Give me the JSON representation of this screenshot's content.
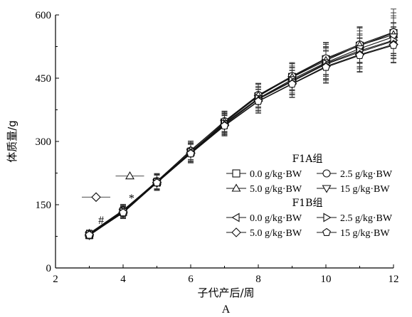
{
  "chart_data": {
    "type": "line",
    "xlabel": "子代产后/周",
    "ylabel": "体质量/g",
    "panel_label": "A",
    "xlim": [
      2,
      12
    ],
    "ylim": [
      0,
      600
    ],
    "x_ticks": [
      2,
      4,
      6,
      8,
      10,
      12
    ],
    "y_ticks": [
      0,
      150,
      300,
      450,
      600
    ],
    "x": [
      3,
      4,
      5,
      6,
      7,
      8,
      9,
      10,
      11,
      12
    ],
    "series": [
      {
        "name": "0.0 g/kg·BW",
        "group": "F1A组",
        "marker": "square",
        "values": [
          78,
          133,
          203,
          275,
          345,
          407,
          453,
          495,
          527,
          557
        ],
        "errors": [
          8,
          14,
          18,
          22,
          24,
          28,
          32,
          38,
          42,
          48
        ]
      },
      {
        "name": "2.5 g/kg·BW",
        "group": "F1A组",
        "marker": "circle",
        "values": [
          80,
          136,
          206,
          278,
          348,
          410,
          455,
          497,
          530,
          559
        ],
        "errors": [
          8,
          14,
          18,
          22,
          24,
          28,
          32,
          38,
          42,
          55
        ]
      },
      {
        "name": "5.0 g/kg·BW",
        "group": "F1A组",
        "marker": "triangle-up",
        "values": [
          82,
          137,
          205,
          279,
          347,
          409,
          452,
          492,
          528,
          553
        ],
        "errors": [
          8,
          14,
          18,
          22,
          24,
          28,
          32,
          38,
          42,
          45
        ]
      },
      {
        "name": "15 g/kg·BW",
        "group": "F1A组",
        "marker": "triangle-down",
        "values": [
          77,
          132,
          202,
          274,
          343,
          402,
          447,
          487,
          520,
          548
        ],
        "errors": [
          8,
          14,
          18,
          22,
          24,
          28,
          32,
          38,
          42,
          45
        ]
      },
      {
        "name": "0.0 g/kg·BW",
        "group": "F1B组",
        "marker": "triangle-left",
        "values": [
          79,
          133,
          203,
          274,
          340,
          400,
          442,
          483,
          512,
          538
        ],
        "errors": [
          8,
          14,
          18,
          22,
          24,
          28,
          32,
          38,
          40,
          42
        ]
      },
      {
        "name": "2.5 g/kg·BW",
        "group": "F1B组",
        "marker": "triangle-right",
        "values": [
          80,
          134,
          204,
          275,
          342,
          402,
          444,
          485,
          515,
          540
        ],
        "errors": [
          8,
          14,
          18,
          22,
          24,
          28,
          32,
          38,
          40,
          42
        ]
      },
      {
        "name": "5.0 g/kg·BW",
        "group": "F1B组",
        "marker": "diamond",
        "values": [
          78,
          131,
          202,
          272,
          338,
          396,
          437,
          478,
          506,
          530
        ],
        "errors": [
          8,
          14,
          18,
          22,
          24,
          28,
          32,
          38,
          40,
          42
        ]
      },
      {
        "name": "15 g/kg·BW",
        "group": "F1B组",
        "marker": "pentagon",
        "values": [
          78,
          131,
          202,
          271,
          337,
          395,
          436,
          476,
          504,
          528
        ],
        "errors": [
          8,
          14,
          18,
          22,
          24,
          28,
          32,
          38,
          40,
          42
        ]
      }
    ],
    "annotations": [
      {
        "text": "#",
        "x": 3.35,
        "y": 113
      },
      {
        "text": "*",
        "x": 4.25,
        "y": 165
      }
    ],
    "significance_markers": [
      {
        "marker": "triangle-up",
        "x": 4.2,
        "y": 218
      },
      {
        "marker": "diamond",
        "x": 3.2,
        "y": 168
      }
    ],
    "legend_position": "lower-right",
    "legend_groups": [
      {
        "title": "F1A组",
        "items": [
          "0.0 g/kg·BW",
          "2.5 g/kg·BW",
          "5.0 g/kg·BW",
          "15 g/kg·BW"
        ]
      },
      {
        "title": "F1B组",
        "items": [
          "0.0 g/kg·BW",
          "2.5 g/kg·BW",
          "5.0 g/kg·BW",
          "15 g/kg·BW"
        ]
      }
    ],
    "grid": false
  }
}
